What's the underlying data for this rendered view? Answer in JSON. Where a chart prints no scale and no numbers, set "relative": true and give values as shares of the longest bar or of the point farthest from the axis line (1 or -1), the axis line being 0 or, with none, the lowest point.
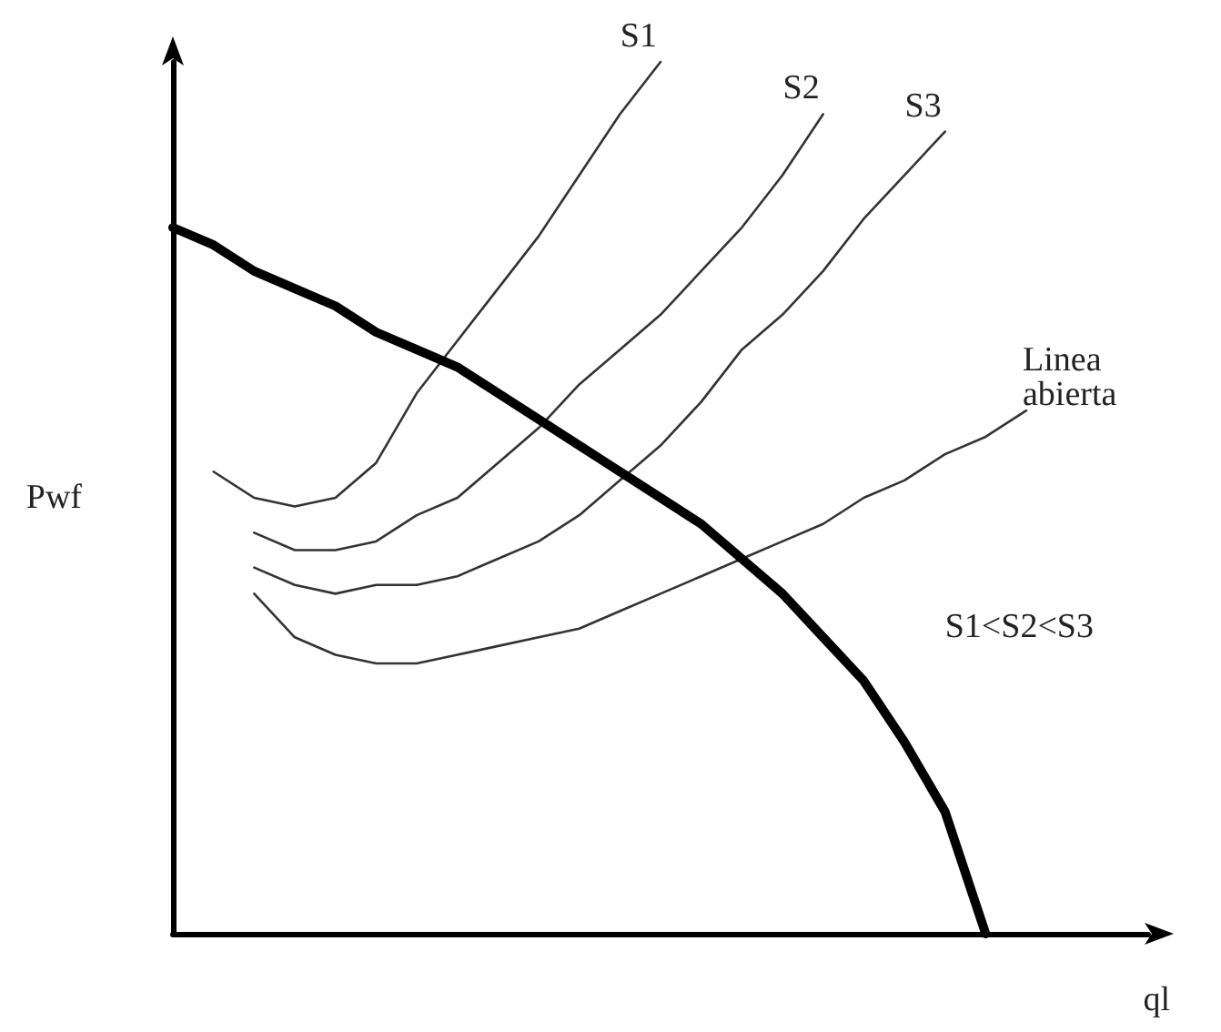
{
  "chart_data": {
    "type": "line",
    "relative": true,
    "xlabel": "ql",
    "ylabel": "Pwf",
    "grid": false,
    "marker": "none",
    "line_style": "solid",
    "annotations": [
      "S1<S2<S3"
    ],
    "categories": [
      null,
      null,
      null,
      null,
      null,
      null,
      null,
      null,
      null,
      null,
      null,
      null,
      null,
      null,
      null,
      null,
      null,
      null,
      null,
      null,
      null,
      null,
      null,
      null,
      null
    ],
    "series": [
      {
        "color": "#000000",
        "values": [
          0.81,
          0.79,
          0.76,
          0.74,
          0.72,
          0.69,
          0.67,
          0.65,
          0.62,
          0.59,
          0.56,
          0.53,
          0.5,
          0.47,
          0.43,
          0.39,
          0.34,
          0.29,
          0.22,
          0.14,
          0,
          null,
          null,
          null,
          null
        ]
      },
      {
        "name": "S1",
        "color": "#333333",
        "values": [
          null,
          0.53,
          0.5,
          0.49,
          0.5,
          0.54,
          0.62,
          0.68,
          0.74,
          0.8,
          0.87,
          0.94,
          1,
          null,
          null,
          null,
          null,
          null,
          null,
          null,
          null,
          null,
          null,
          null,
          null
        ]
      },
      {
        "name": "S2",
        "color": "#333333",
        "values": [
          null,
          null,
          0.46,
          0.44,
          0.44,
          0.45,
          0.48,
          0.5,
          0.54,
          0.58,
          0.63,
          0.67,
          0.71,
          0.76,
          0.81,
          0.87,
          0.94,
          null,
          null,
          null,
          null,
          null,
          null,
          null,
          null
        ]
      },
      {
        "name": "S3",
        "color": "#333333",
        "values": [
          null,
          null,
          0.42,
          0.4,
          0.39,
          0.4,
          0.4,
          0.41,
          0.43,
          0.45,
          0.48,
          0.52,
          0.56,
          0.61,
          0.67,
          0.71,
          0.76,
          0.82,
          0.87,
          0.92,
          null,
          null,
          null,
          null,
          null
        ]
      },
      {
        "name": "Linea abierta",
        "color": "#333333",
        "values": [
          null,
          null,
          0.39,
          0.34,
          0.32,
          0.31,
          0.31,
          0.32,
          0.33,
          0.34,
          0.35,
          0.37,
          0.39,
          0.41,
          0.43,
          0.45,
          0.47,
          0.5,
          0.52,
          0.55,
          0.57,
          0.6,
          null,
          null,
          null
        ]
      }
    ]
  }
}
